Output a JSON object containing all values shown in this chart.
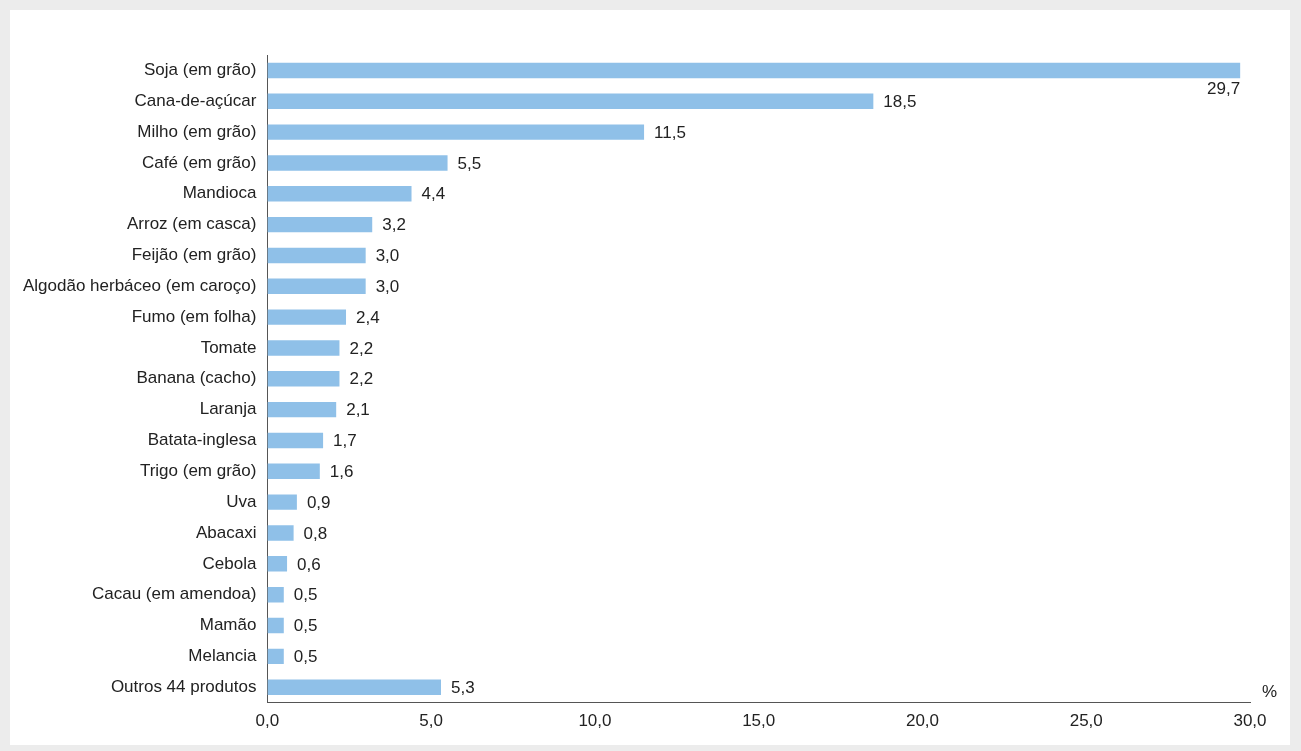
{
  "chart_data": {
    "type": "bar",
    "orientation": "horizontal",
    "xlabel": "%",
    "categories": [
      "Soja (em grão)",
      "Cana-de-açúcar",
      "Milho (em grão)",
      "Café (em grão)",
      "Mandioca",
      "Arroz (em casca)",
      "Feijão (em grão)",
      "Algodão herbáceo (em caroço)",
      "Fumo (em folha)",
      "Tomate",
      "Banana (cacho)",
      "Laranja",
      "Batata-inglesa",
      "Trigo (em grão)",
      "Uva",
      "Abacaxi",
      "Cebola",
      "Cacau (em amendoa)",
      "Mamão",
      "Melancia",
      "Outros 44 produtos"
    ],
    "values": [
      29.7,
      18.5,
      11.5,
      5.5,
      4.4,
      3.2,
      3.0,
      3.0,
      2.4,
      2.2,
      2.2,
      2.1,
      1.7,
      1.6,
      0.9,
      0.8,
      0.6,
      0.5,
      0.5,
      0.5,
      5.3
    ],
    "value_labels": [
      "29,7",
      "18,5",
      "11,5",
      "5,5",
      "4,4",
      "3,2",
      "3,0",
      "3,0",
      "2,4",
      "2,2",
      "2,2",
      "2,1",
      "1,7",
      "1,6",
      "0,9",
      "0,8",
      "0,6",
      "0,5",
      "0,5",
      "0,5",
      "5,3"
    ],
    "color": "#8fc0e8",
    "xlim": [
      0,
      30
    ],
    "xticks": [
      {
        "value": 0,
        "label": "0,0"
      },
      {
        "value": 5,
        "label": "5,0"
      },
      {
        "value": 10,
        "label": "10,0"
      },
      {
        "value": 15,
        "label": "15,0"
      },
      {
        "value": 20,
        "label": "20,0"
      },
      {
        "value": 25,
        "label": "25,0"
      },
      {
        "value": 30,
        "label": "30,0"
      }
    ],
    "grid": false,
    "legend": false
  }
}
